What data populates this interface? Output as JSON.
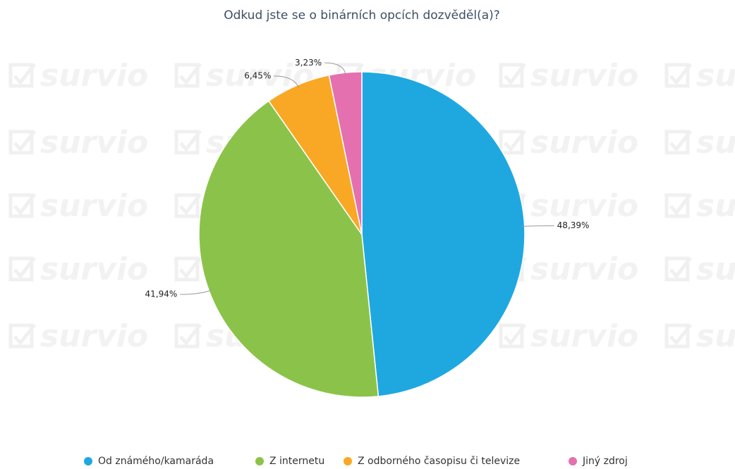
{
  "chart_data": {
    "type": "pie",
    "title": "Odkud jste se o binárních opcích dozvěděl(a)?",
    "watermark": "survio",
    "categories": [
      "Od známého/kamaráda",
      "Z internetu",
      "Z odborného časopisu či televize",
      "Jiný zdroj"
    ],
    "values": [
      48.39,
      41.94,
      6.45,
      3.23
    ],
    "value_labels": [
      "48,39%",
      "41,94%",
      "6,45%",
      "3,23%"
    ],
    "colors": [
      "#1fa8e0",
      "#8bc34a",
      "#f9a825",
      "#e570b0"
    ],
    "legend": "bottom"
  }
}
